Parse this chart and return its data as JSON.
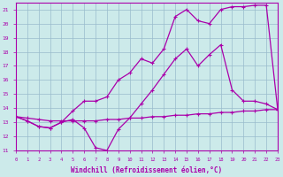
{
  "xlabel": "Windchill (Refroidissement éolien,°C)",
  "xlim": [
    0,
    23
  ],
  "ylim": [
    11,
    21.5
  ],
  "xticks": [
    0,
    1,
    2,
    3,
    4,
    5,
    6,
    7,
    8,
    9,
    10,
    11,
    12,
    13,
    14,
    15,
    16,
    17,
    18,
    19,
    20,
    21,
    22,
    23
  ],
  "yticks": [
    11,
    12,
    13,
    14,
    15,
    16,
    17,
    18,
    19,
    20,
    21
  ],
  "bg_color": "#cceaea",
  "grid_color": "#99bbcc",
  "line_color": "#aa00aa",
  "line1_x": [
    0,
    1,
    2,
    3,
    4,
    5,
    6,
    7,
    8,
    9,
    10,
    11,
    12,
    13,
    14,
    15,
    16,
    17,
    18,
    19,
    20,
    21,
    22,
    23
  ],
  "line1_y": [
    13.4,
    13.3,
    13.2,
    13.1,
    13.1,
    13.1,
    13.1,
    13.1,
    13.2,
    13.2,
    13.3,
    13.3,
    13.4,
    13.4,
    13.5,
    13.5,
    13.6,
    13.6,
    13.7,
    13.7,
    13.8,
    13.8,
    13.9,
    13.9
  ],
  "line2_x": [
    0,
    1,
    2,
    3,
    4,
    5,
    6,
    7,
    8,
    9,
    10,
    11,
    12,
    13,
    14,
    15,
    16,
    17,
    18,
    19,
    20,
    21,
    22,
    23
  ],
  "line2_y": [
    13.4,
    13.1,
    12.7,
    12.6,
    13.0,
    13.2,
    12.6,
    11.2,
    11.0,
    12.5,
    13.3,
    14.3,
    15.3,
    16.4,
    17.5,
    18.2,
    17.0,
    17.8,
    18.5,
    15.3,
    14.5,
    14.5,
    14.3,
    13.9
  ],
  "line3_x": [
    0,
    1,
    2,
    3,
    4,
    5,
    6,
    7,
    8,
    9,
    10,
    11,
    12,
    13,
    14,
    15,
    16,
    17,
    18,
    19,
    20,
    21,
    22,
    23
  ],
  "line3_y": [
    13.4,
    13.1,
    12.7,
    12.6,
    13.0,
    13.8,
    14.5,
    14.5,
    14.8,
    16.0,
    16.5,
    17.5,
    17.2,
    18.2,
    20.5,
    21.0,
    20.2,
    20.0,
    21.0,
    21.2,
    21.2,
    21.3,
    21.3,
    13.9
  ]
}
